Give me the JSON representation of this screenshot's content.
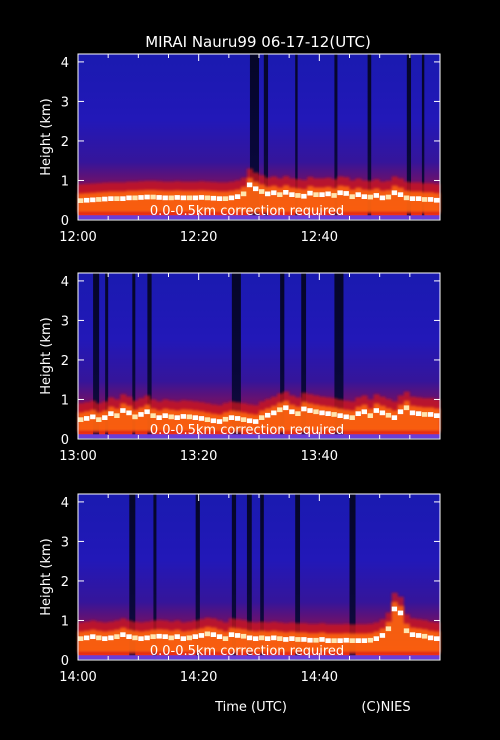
{
  "title": "MIRAI Nauru99 06-17-12(UTC)",
  "xlabel": "Time (UTC)",
  "credit": "(C)NIES",
  "chart_data": [
    {
      "type": "heatmap",
      "ylabel": "Height (km)",
      "ylim": [
        0,
        4.2
      ],
      "yticks": [
        "0",
        "1",
        "2",
        "3",
        "4"
      ],
      "xlim": [
        "12:00",
        "13:00"
      ],
      "xticks": [
        "12:00",
        "12:20",
        "12:40"
      ],
      "annotation": "0.0-0.5km correction required",
      "cloud_base_km": [
        0.55,
        0.56,
        0.57,
        0.58,
        0.59,
        0.6,
        0.6,
        0.6,
        0.62,
        0.62,
        0.63,
        0.64,
        0.64,
        0.63,
        0.62,
        0.62,
        0.63,
        0.62,
        0.62,
        0.62,
        0.63,
        0.62,
        0.61,
        0.6,
        0.6,
        0.62,
        0.65,
        0.72,
        0.95,
        0.85,
        0.78,
        0.72,
        0.75,
        0.7,
        0.76,
        0.7,
        0.68,
        0.66,
        0.74,
        0.7,
        0.7,
        0.72,
        0.68,
        0.75,
        0.73,
        0.65,
        0.7,
        0.65,
        0.64,
        0.68,
        0.62,
        0.64,
        0.75,
        0.7,
        0.62,
        0.6,
        0.6,
        0.58,
        0.58,
        0.56
      ],
      "dark_columns_min": [
        [
          28.5,
          30
        ],
        [
          30.8,
          31.5
        ],
        [
          36,
          36.4
        ],
        [
          42.5,
          43
        ],
        [
          48,
          48.6
        ],
        [
          54.5,
          55.2
        ],
        [
          57,
          57.4
        ]
      ]
    },
    {
      "type": "heatmap",
      "ylabel": "Height (km)",
      "ylim": [
        0,
        4.2
      ],
      "yticks": [
        "0",
        "1",
        "2",
        "3",
        "4"
      ],
      "xlim": [
        "13:00",
        "14:00"
      ],
      "xticks": [
        "13:00",
        "13:20",
        "13:40"
      ],
      "annotation": "0.0-0.5km correction required",
      "cloud_base_km": [
        0.55,
        0.58,
        0.62,
        0.55,
        0.6,
        0.7,
        0.65,
        0.78,
        0.72,
        0.62,
        0.68,
        0.75,
        0.65,
        0.6,
        0.65,
        0.62,
        0.6,
        0.63,
        0.62,
        0.6,
        0.58,
        0.55,
        0.52,
        0.5,
        0.56,
        0.6,
        0.58,
        0.55,
        0.52,
        0.5,
        0.6,
        0.66,
        0.72,
        0.8,
        0.85,
        0.75,
        0.7,
        0.82,
        0.78,
        0.75,
        0.72,
        0.7,
        0.68,
        0.65,
        0.62,
        0.6,
        0.7,
        0.75,
        0.65,
        0.78,
        0.72,
        0.66,
        0.6,
        0.75,
        0.85,
        0.72,
        0.7,
        0.68,
        0.68,
        0.65
      ],
      "dark_columns_min": [
        [
          2.5,
          3.5
        ],
        [
          4.5,
          5
        ],
        [
          9,
          9.5
        ],
        [
          11.5,
          12.2
        ],
        [
          25.5,
          27
        ],
        [
          33.5,
          34.2
        ],
        [
          37,
          37.8
        ],
        [
          42.5,
          44
        ]
      ]
    },
    {
      "type": "heatmap",
      "ylabel": "Height (km)",
      "ylim": [
        0,
        4.2
      ],
      "yticks": [
        "0",
        "1",
        "2",
        "3",
        "4"
      ],
      "xlim": [
        "14:00",
        "15:00"
      ],
      "xticks": [
        "14:00",
        "14:20",
        "14:40"
      ],
      "annotation": "0.0-0.5km correction required",
      "cloud_base_km": [
        0.6,
        0.62,
        0.65,
        0.62,
        0.6,
        0.62,
        0.65,
        0.7,
        0.65,
        0.62,
        0.6,
        0.62,
        0.65,
        0.66,
        0.65,
        0.62,
        0.65,
        0.6,
        0.62,
        0.65,
        0.68,
        0.72,
        0.7,
        0.65,
        0.6,
        0.7,
        0.68,
        0.66,
        0.62,
        0.6,
        0.62,
        0.6,
        0.62,
        0.6,
        0.58,
        0.6,
        0.58,
        0.58,
        0.56,
        0.56,
        0.58,
        0.55,
        0.55,
        0.55,
        0.56,
        0.55,
        0.55,
        0.55,
        0.56,
        0.6,
        0.68,
        0.85,
        1.35,
        1.25,
        0.8,
        0.7,
        0.68,
        0.66,
        0.62,
        0.6
      ],
      "dark_columns_min": [
        [
          8.5,
          9.5
        ],
        [
          12.5,
          13
        ],
        [
          19.5,
          20.2
        ],
        [
          25.5,
          26.2
        ],
        [
          28,
          28.8
        ],
        [
          30.2,
          30.8
        ],
        [
          36,
          36.8
        ],
        [
          45,
          46
        ]
      ]
    }
  ]
}
